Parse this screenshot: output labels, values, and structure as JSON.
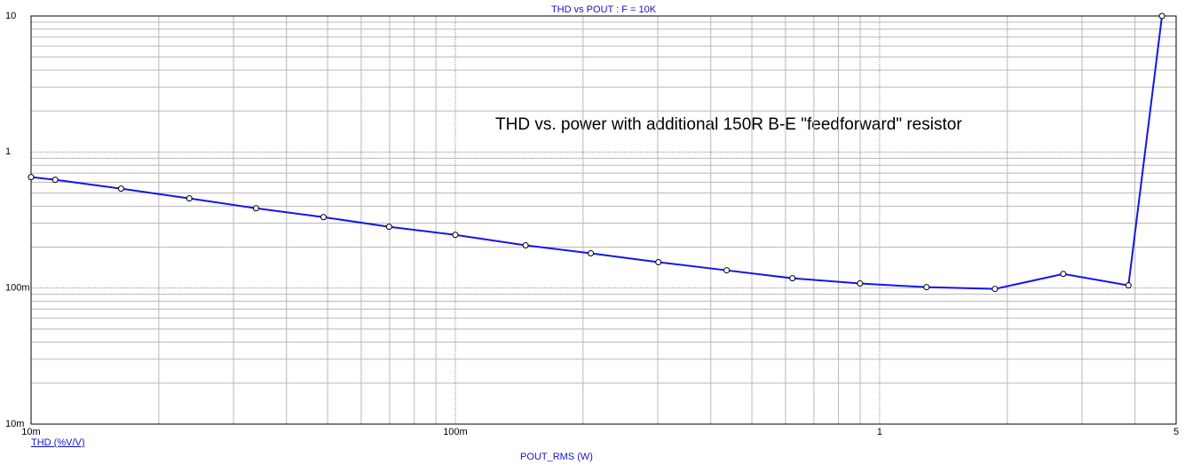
{
  "chart_data": {
    "type": "line",
    "title": "THD vs POUT : F = 10K",
    "annotation": "THD vs. power with additional 150R B-E \"feedforward\" resistor",
    "x_label": "POUT_RMS (W)",
    "x": [
      0.01,
      0.0114,
      0.0163,
      0.0236,
      0.0339,
      0.0489,
      0.0698,
      0.1,
      0.1464,
      0.2086,
      0.301,
      0.436,
      0.623,
      0.899,
      1.29,
      1.87,
      2.71,
      3.86,
      4.63
    ],
    "series": [
      {
        "name": "THD (%V/V)",
        "color": "#1414f0",
        "values": [
          0.654,
          0.625,
          0.538,
          0.456,
          0.386,
          0.332,
          0.282,
          0.246,
          0.206,
          0.18,
          0.155,
          0.135,
          0.118,
          0.108,
          0.1015,
          0.0985,
          0.127,
          0.1046,
          10
        ]
      }
    ],
    "xlim": [
      0.01,
      5
    ],
    "ylim": [
      0.01,
      10
    ],
    "xticks": [
      {
        "value": 0.01,
        "label": "10m"
      },
      {
        "value": 0.1,
        "label": "100m"
      },
      1,
      5
    ],
    "yticks": [
      {
        "value": 0.01,
        "label": "10m"
      },
      {
        "value": 0.1,
        "label": "100m"
      },
      1,
      10
    ],
    "log_x": true,
    "log_y": true,
    "grid": true
  }
}
